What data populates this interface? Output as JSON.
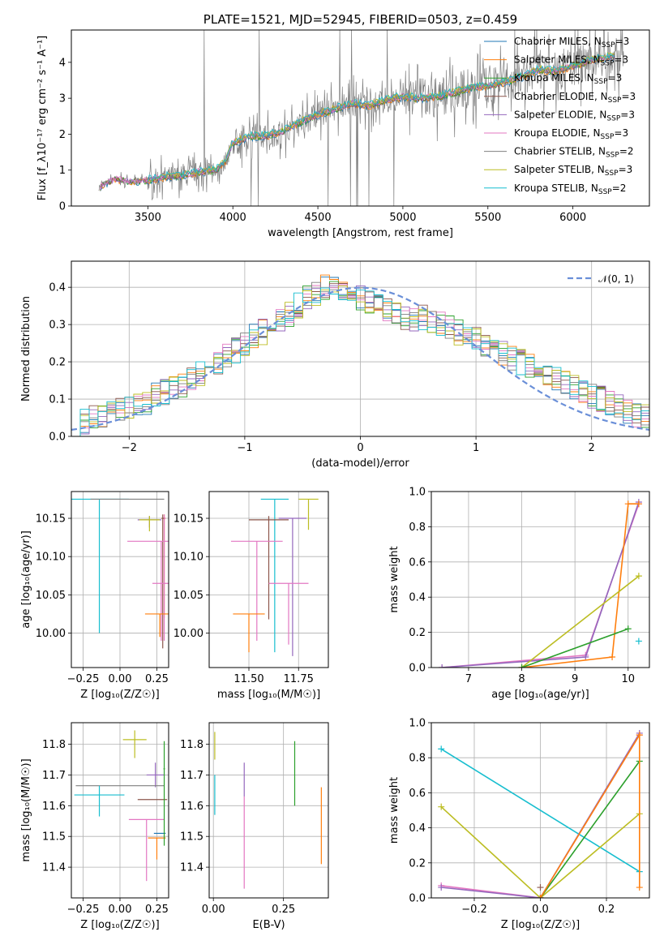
{
  "colors": {
    "Chabrier MILES": "#1f77b4",
    "Salpeter MILES": "#ff7f0e",
    "Kroupa MILES": "#2ca02c",
    "Chabrier ELODIE": "#8c564b",
    "Salpeter ELODIE": "#9467bd",
    "Kroupa ELODIE": "#e377c2",
    "Chabrier STELIB": "#7f7f7f",
    "Salpeter STELIB": "#bcbd22",
    "Kroupa STELIB": "#17becf",
    "data": "#808080",
    "normal": "#6a8fd8"
  },
  "chart_data": [
    {
      "id": "spectrum",
      "type": "line",
      "title": "PLATE=1521, MJD=52945, FIBERID=0503, z=0.459",
      "xlabel": "wavelength [Angstrom, rest frame]",
      "ylabel": "Flux [f_λ10⁻¹⁷ erg cm⁻² s⁻¹ A⁻¹]",
      "xlim": [
        3050,
        6450
      ],
      "ylim": [
        0,
        4.9
      ],
      "xticks": [
        3500,
        4000,
        4500,
        5000,
        5500,
        6000
      ],
      "xtick_labels": [
        "3500",
        "4000",
        "4500",
        "5000",
        "5500",
        "6000"
      ],
      "yticks": [
        0,
        1,
        2,
        3,
        4
      ],
      "ytick_labels": [
        "0",
        "1",
        "2",
        "3",
        "4"
      ],
      "legend": [
        {
          "base": "Chabrier MILES, N",
          "sub": "SSP",
          "tail": "=3"
        },
        {
          "base": "Salpeter MILES, N",
          "sub": "SSP",
          "tail": "=3"
        },
        {
          "base": "Kroupa MILES, N",
          "sub": "SSP",
          "tail": "=3"
        },
        {
          "base": "Chabrier ELODIE, N",
          "sub": "SSP",
          "tail": "=3"
        },
        {
          "base": "Salpeter ELODIE, N",
          "sub": "SSP",
          "tail": "=3"
        },
        {
          "base": "Kroupa ELODIE, N",
          "sub": "SSP",
          "tail": "=3"
        },
        {
          "base": "Chabrier STELIB, N",
          "sub": "SSP",
          "tail": "=2"
        },
        {
          "base": "Salpeter STELIB, N",
          "sub": "SSP",
          "tail": "=3"
        },
        {
          "base": "Kroupa STELIB, N",
          "sub": "SSP",
          "tail": "=2"
        }
      ],
      "legend_placement": "upper-right",
      "continuum": {
        "x": [
          3200,
          3300,
          3400,
          3500,
          3600,
          3700,
          3800,
          3900,
          3950,
          4000,
          4100,
          4200,
          4300,
          4400,
          4500,
          4600,
          4700,
          4800,
          4900,
          5000,
          5100,
          5200,
          5300,
          5400,
          5500,
          5600,
          5700,
          5800,
          5900,
          6000,
          6100,
          6200
        ],
        "y": [
          0.5,
          0.75,
          0.7,
          0.72,
          0.82,
          0.85,
          0.95,
          1.0,
          1.2,
          1.75,
          1.95,
          1.95,
          2.1,
          2.35,
          2.55,
          2.7,
          2.85,
          2.8,
          2.95,
          3.05,
          3.0,
          3.05,
          3.15,
          3.3,
          3.35,
          3.45,
          3.6,
          3.8,
          3.75,
          3.9,
          4.05,
          4.15
        ]
      },
      "grid": false
    },
    {
      "id": "residuals",
      "type": "histogram",
      "xlabel": "(data-model)/error",
      "ylabel": "Normed distribution",
      "xlim": [
        -2.5,
        2.5
      ],
      "ylim": [
        0,
        0.47
      ],
      "xticks": [
        -2,
        -1,
        0,
        1,
        2
      ],
      "xtick_labels": [
        "−2",
        "−1",
        "0",
        "1",
        "2"
      ],
      "yticks": [
        0,
        0.1,
        0.2,
        0.3,
        0.4
      ],
      "ytick_labels": [
        "0.0",
        "0.1",
        "0.2",
        "0.3",
        "0.4"
      ],
      "bin_edges_start": -2.5,
      "bin_width": 0.1,
      "base_hist": [
        0.03,
        0.04,
        0.05,
        0.06,
        0.06,
        0.07,
        0.08,
        0.09,
        0.09,
        0.11,
        0.12,
        0.13,
        0.14,
        0.16,
        0.17,
        0.19,
        0.2,
        0.22,
        0.23,
        0.25,
        0.27,
        0.28,
        0.3,
        0.31,
        0.33,
        0.35,
        0.37,
        0.38,
        0.4,
        0.41,
        0.4,
        0.38,
        0.37,
        0.36,
        0.35,
        0.34,
        0.33,
        0.32,
        0.31,
        0.32,
        0.31,
        0.3,
        0.29,
        0.28,
        0.27,
        0.26,
        0.25,
        0.24,
        0.22,
        0.21,
        0.2,
        0.19,
        0.17,
        0.16,
        0.15,
        0.14,
        0.13,
        0.12,
        0.11,
        0.1,
        0.09,
        0.08,
        0.07,
        0.06,
        0.05
      ],
      "normal_label": "𝒩(0, 1)",
      "legend_placement": "upper-right",
      "grid": true
    },
    {
      "id": "age-vs-Z",
      "type": "errorbar",
      "xlabel": "Z [log₁₀(Z/Z☉)]",
      "ylabel": "age  [log₁₀(age/yr)]",
      "xlim": [
        -0.33,
        0.33
      ],
      "ylim": [
        9.955,
        10.185
      ],
      "xticks": [
        -0.25,
        0,
        0.25
      ],
      "xtick_labels": [
        "−0.25",
        "0.00",
        "0.25"
      ],
      "yticks": [
        10.0,
        10.05,
        10.1,
        10.15
      ],
      "ytick_labels": [
        "10.00",
        "10.05",
        "10.10",
        "10.15"
      ],
      "points": [
        {
          "model": "Kroupa STELIB",
          "x": -0.14,
          "y": 10.175,
          "xerr": 0.2,
          "yerr_lo": 0.175,
          "yerr_hi": 0.0
        },
        {
          "model": "Chabrier STELIB",
          "x": 0.05,
          "y": 10.175,
          "xerr": 0.25,
          "yerr_lo": 0.0,
          "yerr_hi": 0.0
        },
        {
          "model": "Salpeter ELODIE",
          "x": 0.2,
          "y": 10.148,
          "xerr": 0.08,
          "yerr_lo": 0.01,
          "yerr_hi": 0.005
        },
        {
          "model": "Salpeter STELIB",
          "x": 0.2,
          "y": 10.148,
          "xerr": 0.07,
          "yerr_lo": 0.015,
          "yerr_hi": 0.005
        },
        {
          "model": "Salpeter MILES",
          "x": 0.3,
          "y": 10.15,
          "xerr": 0.01,
          "yerr_lo": 0.13,
          "yerr_hi": 0.005
        },
        {
          "model": "Kroupa ELODIE",
          "x": 0.3,
          "y": 10.15,
          "xerr": 0.01,
          "yerr_lo": 0.16,
          "yerr_hi": 0.005
        },
        {
          "model": "Chabrier ELODIE",
          "x": 0.29,
          "y": 10.15,
          "xerr": 0.01,
          "yerr_lo": 0.17,
          "yerr_hi": 0.005
        },
        {
          "model": "Kroupa ELODIE",
          "x": 0.28,
          "y": 10.12,
          "xerr": 0.23,
          "yerr_lo": 0.13,
          "yerr_hi": 0.0
        },
        {
          "model": "Kroupa ELODIE",
          "x": 0.28,
          "y": 10.065,
          "xerr": 0.06,
          "yerr_lo": 0.07,
          "yerr_hi": 0.0
        },
        {
          "model": "Salpeter MILES",
          "x": 0.27,
          "y": 10.025,
          "xerr": 0.1,
          "yerr_lo": 0.03,
          "yerr_hi": 0.0
        }
      ],
      "grid": true
    },
    {
      "id": "age-vs-mass",
      "type": "errorbar",
      "xlabel": "mass [log₁₀(M/M☉)]",
      "ylabel": "",
      "xlim": [
        11.3,
        11.9
      ],
      "ylim": [
        9.955,
        10.185
      ],
      "xticks": [
        11.5,
        11.75
      ],
      "xtick_labels": [
        "11.50",
        "11.75"
      ],
      "yticks": [
        10.0,
        10.05,
        10.1,
        10.15
      ],
      "ytick_labels": [
        "10.00",
        "10.05",
        "10.10",
        "10.15"
      ],
      "points": [
        {
          "model": "Kroupa STELIB",
          "x": 11.63,
          "y": 10.175,
          "xerr": 0.07,
          "yerr_lo": 0.2,
          "yerr_hi": 0.0
        },
        {
          "model": "Salpeter STELIB",
          "x": 11.8,
          "y": 10.175,
          "xerr": 0.05,
          "yerr_lo": 0.04,
          "yerr_hi": 0.0
        },
        {
          "model": "Chabrier ELODIE",
          "x": 11.6,
          "y": 10.148,
          "xerr": 0.1,
          "yerr_lo": 0.13,
          "yerr_hi": 0.005
        },
        {
          "model": "Salpeter ELODIE",
          "x": 11.72,
          "y": 10.15,
          "xerr": 0.07,
          "yerr_lo": 0.18,
          "yerr_hi": 0.0
        },
        {
          "model": "Kroupa ELODIE",
          "x": 11.54,
          "y": 10.12,
          "xerr": 0.13,
          "yerr_lo": 0.13,
          "yerr_hi": 0.0
        },
        {
          "model": "Kroupa ELODIE",
          "x": 11.7,
          "y": 10.065,
          "xerr": 0.1,
          "yerr_lo": 0.08,
          "yerr_hi": 0.0
        },
        {
          "model": "Salpeter MILES",
          "x": 11.5,
          "y": 10.025,
          "xerr": 0.08,
          "yerr_lo": 0.05,
          "yerr_hi": 0.0
        }
      ],
      "grid": true
    },
    {
      "id": "mass-weight-vs-age",
      "type": "line",
      "xlabel": "age  [log₁₀(age/yr)]",
      "ylabel": "mass weight",
      "xlim": [
        6.3,
        10.4
      ],
      "ylim": [
        0,
        1
      ],
      "xticks": [
        7,
        8,
        9,
        10
      ],
      "xtick_labels": [
        "7",
        "8",
        "9",
        "10"
      ],
      "yticks": [
        0,
        0.2,
        0.4,
        0.6,
        0.8,
        1.0
      ],
      "ytick_labels": [
        "0.0",
        "0.2",
        "0.4",
        "0.6",
        "0.8",
        "1.0"
      ],
      "series": [
        {
          "model": "Kroupa ELODIE",
          "x": [
            6.5,
            9.2,
            10.2
          ],
          "y": [
            0.0,
            0.07,
            0.93
          ]
        },
        {
          "model": "Salpeter ELODIE",
          "x": [
            6.5,
            9.2,
            10.2
          ],
          "y": [
            0.0,
            0.06,
            0.94
          ]
        },
        {
          "model": "Salpeter MILES",
          "x": [
            8.0,
            9.7,
            10.0,
            10.2
          ],
          "y": [
            0.0,
            0.06,
            0.93,
            0.93
          ]
        },
        {
          "model": "Kroupa STELIB",
          "x": [
            10.2
          ],
          "y": [
            0.15
          ]
        },
        {
          "model": "Salpeter STELIB",
          "x": [
            8.0,
            10.2
          ],
          "y": [
            0.0,
            0.52
          ]
        },
        {
          "model": "Kroupa MILES",
          "x": [
            8.0,
            10.0
          ],
          "y": [
            0.0,
            0.22
          ]
        }
      ],
      "grid": true
    },
    {
      "id": "mass-vs-Z",
      "type": "errorbar",
      "xlabel": "Z [log₁₀(Z/Z☉)]",
      "ylabel": "mass [log₁₀(M/M☉)]",
      "xlim": [
        -0.33,
        0.33
      ],
      "ylim": [
        11.3,
        11.87
      ],
      "xticks": [
        -0.25,
        0,
        0.25
      ],
      "xtick_labels": [
        "−0.25",
        "0.00",
        "0.25"
      ],
      "yticks": [
        11.4,
        11.5,
        11.6,
        11.7,
        11.8
      ],
      "ytick_labels": [
        "11.4",
        "11.5",
        "11.6",
        "11.7",
        "11.8"
      ],
      "points": [
        {
          "model": "Salpeter STELIB",
          "x": 0.1,
          "y": 11.815,
          "xerr": 0.08,
          "yerr_lo": 0.06,
          "yerr_hi": 0.03
        },
        {
          "model": "Salpeter ELODIE",
          "x": 0.24,
          "y": 11.7,
          "xerr": 0.06,
          "yerr_lo": 0.04,
          "yerr_hi": 0.04
        },
        {
          "model": "Chabrier STELIB",
          "x": 0.0,
          "y": 11.665,
          "xerr": 0.3,
          "yerr_lo": 0.0,
          "yerr_hi": 0.0
        },
        {
          "model": "Kroupa STELIB",
          "x": -0.14,
          "y": 11.635,
          "xerr": 0.17,
          "yerr_lo": 0.07,
          "yerr_hi": 0.03
        },
        {
          "model": "Chabrier ELODIE",
          "x": 0.22,
          "y": 11.62,
          "xerr": 0.1,
          "yerr_lo": 0.0,
          "yerr_hi": 0.0
        },
        {
          "model": "Kroupa ELODIE",
          "x": 0.18,
          "y": 11.555,
          "xerr": 0.12,
          "yerr_lo": 0.2,
          "yerr_hi": 0.0
        },
        {
          "model": "Chabrier MILES",
          "x": 0.27,
          "y": 11.51,
          "xerr": 0.04,
          "yerr_lo": 0.0,
          "yerr_hi": 0.0
        },
        {
          "model": "Salpeter MILES",
          "x": 0.25,
          "y": 11.495,
          "xerr": 0.06,
          "yerr_lo": 0.07,
          "yerr_hi": 0.0
        },
        {
          "model": "Kroupa MILES",
          "x": 0.3,
          "y": 11.72,
          "xerr": 0.005,
          "yerr_lo": 0.25,
          "yerr_hi": 0.09
        }
      ],
      "grid": true
    },
    {
      "id": "mass-vs-ebv",
      "type": "errorbar",
      "xlabel": "E(B-V)",
      "ylabel": "",
      "xlim": [
        -0.015,
        0.41
      ],
      "ylim": [
        11.3,
        11.87
      ],
      "xticks": [
        0.0,
        0.25
      ],
      "xtick_labels": [
        "0.00",
        "0.25"
      ],
      "yticks": [
        11.4,
        11.5,
        11.6,
        11.7,
        11.8
      ],
      "ytick_labels": [
        "11.4",
        "11.5",
        "11.6",
        "11.7",
        "11.8"
      ],
      "points": [
        {
          "model": "Salpeter STELIB",
          "x": 0.005,
          "y": 11.8,
          "xerr": 0.0,
          "yerr_lo": 0.05,
          "yerr_hi": 0.04
        },
        {
          "model": "Kroupa STELIB",
          "x": 0.005,
          "y": 11.65,
          "xerr": 0.0,
          "yerr_lo": 0.08,
          "yerr_hi": 0.05
        },
        {
          "model": "Salpeter ELODIE",
          "x": 0.11,
          "y": 11.7,
          "xerr": 0.0,
          "yerr_lo": 0.07,
          "yerr_hi": 0.04
        },
        {
          "model": "Kroupa ELODIE",
          "x": 0.11,
          "y": 11.48,
          "xerr": 0.0,
          "yerr_lo": 0.15,
          "yerr_hi": 0.15
        },
        {
          "model": "Kroupa MILES",
          "x": 0.29,
          "y": 11.7,
          "xerr": 0.0,
          "yerr_lo": 0.1,
          "yerr_hi": 0.11
        },
        {
          "model": "Salpeter MILES",
          "x": 0.385,
          "y": 11.53,
          "xerr": 0.0,
          "yerr_lo": 0.12,
          "yerr_hi": 0.13
        }
      ],
      "grid": true
    },
    {
      "id": "mass-weight-vs-Z",
      "type": "line",
      "xlabel": "Z [log₁₀(Z/Z☉)]",
      "ylabel": "mass weight",
      "xlim": [
        -0.33,
        0.33
      ],
      "ylim": [
        0,
        1
      ],
      "xticks": [
        -0.2,
        0,
        0.2
      ],
      "xtick_labels": [
        "−0.2",
        "0.0",
        "0.2"
      ],
      "yticks": [
        0,
        0.2,
        0.4,
        0.6,
        0.8,
        1.0
      ],
      "ytick_labels": [
        "0.0",
        "0.2",
        "0.4",
        "0.6",
        "0.8",
        "1.0"
      ],
      "series": [
        {
          "model": "Kroupa STELIB",
          "x": [
            -0.3,
            0.3
          ],
          "y": [
            0.85,
            0.15
          ]
        },
        {
          "model": "Salpeter STELIB",
          "x": [
            -0.3,
            0.0,
            0.3
          ],
          "y": [
            0.52,
            0.0,
            0.48
          ]
        },
        {
          "model": "Kroupa ELODIE",
          "x": [
            -0.3,
            0.0,
            0.3
          ],
          "y": [
            0.07,
            0.0,
            0.93
          ]
        },
        {
          "model": "Salpeter ELODIE",
          "x": [
            -0.3,
            0.0,
            0.3
          ],
          "y": [
            0.06,
            0.0,
            0.94
          ]
        },
        {
          "model": "Kroupa MILES",
          "x": [
            0.0,
            0.3
          ],
          "y": [
            0.0,
            0.78
          ]
        },
        {
          "model": "Salpeter MILES",
          "x": [
            0.0,
            0.3,
            0.3
          ],
          "y": [
            0.0,
            0.93,
            0.06
          ]
        },
        {
          "model": "Chabrier ELODIE",
          "x": [
            0.0
          ],
          "y": [
            0.06
          ]
        }
      ],
      "grid": true
    }
  ]
}
